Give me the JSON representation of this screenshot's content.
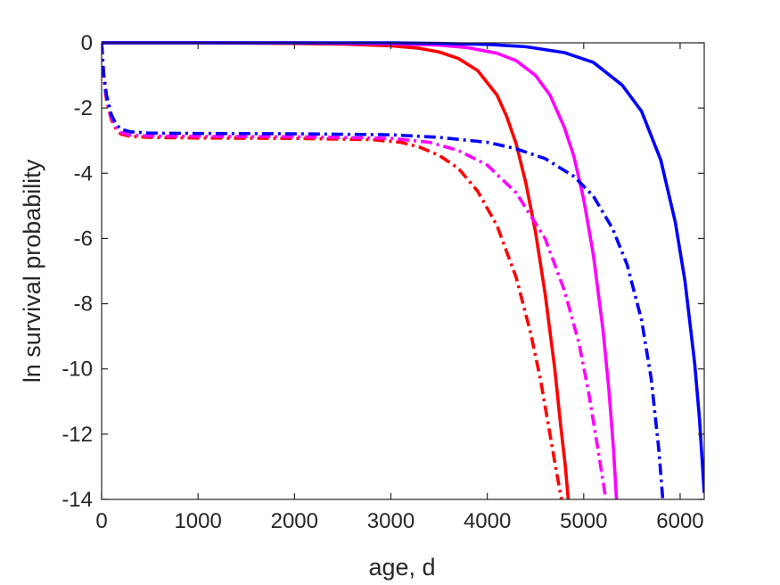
{
  "chart_data": {
    "type": "line",
    "title": "",
    "xlabel": "age, d",
    "ylabel": "ln survival probability",
    "xlim": [
      0,
      6250
    ],
    "ylim": [
      -14,
      0
    ],
    "xticks": [
      0,
      1000,
      2000,
      3000,
      4000,
      5000,
      6000
    ],
    "yticks": [
      0,
      -2,
      -4,
      -6,
      -8,
      -10,
      -12,
      -14
    ],
    "grid": false,
    "legend": "none",
    "series": [
      {
        "color": "#ff0000",
        "style": "solid",
        "x": [
          0,
          1000,
          2000,
          2500,
          3000,
          3300,
          3500,
          3700,
          3900,
          4100,
          4200,
          4300,
          4400,
          4500,
          4600,
          4700,
          4760,
          4810,
          4840
        ],
        "y": [
          0,
          0,
          -0.02,
          -0.04,
          -0.09,
          -0.17,
          -0.28,
          -0.48,
          -0.85,
          -1.6,
          -2.25,
          -3.1,
          -4.3,
          -5.8,
          -7.7,
          -10.0,
          -11.7,
          -13.0,
          -14.0
        ]
      },
      {
        "color": "#ff00ff",
        "style": "solid",
        "x": [
          0,
          1000,
          2000,
          3000,
          3500,
          3800,
          4100,
          4300,
          4500,
          4650,
          4800,
          4900,
          5000,
          5100,
          5200,
          5260,
          5310,
          5340
        ],
        "y": [
          0,
          0,
          0,
          -0.03,
          -0.07,
          -0.15,
          -0.32,
          -0.55,
          -1.0,
          -1.6,
          -2.6,
          -3.5,
          -4.8,
          -6.5,
          -8.8,
          -10.6,
          -12.5,
          -14.0
        ]
      },
      {
        "color": "#0000ff",
        "style": "solid",
        "x": [
          0,
          1000,
          2000,
          3000,
          3500,
          4000,
          4400,
          4800,
          5100,
          5400,
          5600,
          5800,
          5950,
          6050,
          6150,
          6200,
          6250
        ],
        "y": [
          0,
          0,
          0,
          0,
          -0.02,
          -0.05,
          -0.12,
          -0.3,
          -0.6,
          -1.3,
          -2.1,
          -3.6,
          -5.5,
          -7.3,
          -9.8,
          -11.5,
          -13.8
        ]
      },
      {
        "color": "#ff0000",
        "style": "dashdot",
        "x": [
          0,
          20,
          50,
          100,
          150,
          200,
          300,
          500,
          1000,
          2000,
          2800,
          3100,
          3300,
          3500,
          3700,
          3900,
          4100,
          4300,
          4450,
          4550,
          4650,
          4720,
          4770
        ],
        "y": [
          0,
          -1.0,
          -1.75,
          -2.35,
          -2.65,
          -2.8,
          -2.87,
          -2.9,
          -2.92,
          -2.93,
          -2.97,
          -3.05,
          -3.2,
          -3.45,
          -3.85,
          -4.55,
          -5.6,
          -7.2,
          -8.9,
          -10.3,
          -12.0,
          -13.2,
          -14.0
        ]
      },
      {
        "color": "#ff00ff",
        "style": "dashdot",
        "x": [
          0,
          20,
          50,
          100,
          150,
          200,
          300,
          500,
          1000,
          2000,
          3000,
          3400,
          3700,
          4000,
          4300,
          4600,
          4800,
          4950,
          5050,
          5150,
          5230
        ],
        "y": [
          0,
          -0.95,
          -1.7,
          -2.3,
          -2.6,
          -2.75,
          -2.83,
          -2.86,
          -2.87,
          -2.88,
          -2.93,
          -3.05,
          -3.3,
          -3.75,
          -4.6,
          -6.0,
          -7.6,
          -9.2,
          -10.7,
          -12.5,
          -14.0
        ]
      },
      {
        "color": "#0000ff",
        "style": "dashdot",
        "x": [
          0,
          20,
          50,
          100,
          150,
          200,
          300,
          500,
          1000,
          2000,
          3000,
          3500,
          4000,
          4300,
          4600,
          4900,
          5100,
          5300,
          5450,
          5600,
          5700,
          5780,
          5820
        ],
        "y": [
          0,
          -0.9,
          -1.6,
          -2.2,
          -2.5,
          -2.65,
          -2.73,
          -2.77,
          -2.78,
          -2.79,
          -2.82,
          -2.9,
          -3.05,
          -3.25,
          -3.55,
          -4.1,
          -4.7,
          -5.7,
          -6.8,
          -8.5,
          -10.3,
          -12.5,
          -14.0
        ]
      }
    ]
  }
}
